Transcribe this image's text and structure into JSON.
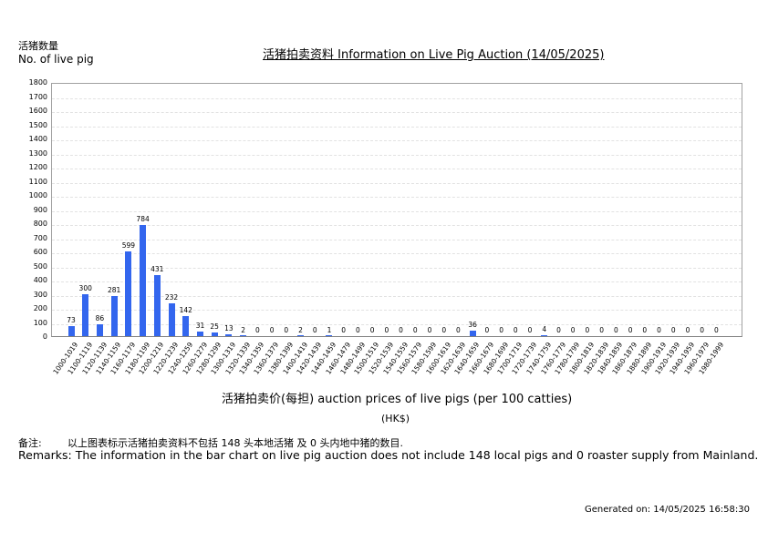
{
  "header": {
    "ylabel_cn": "活猪数量",
    "ylabel_en": "No. of live pig",
    "title": "活猪拍卖资料 Information on Live Pig Auction (14/05/2025)"
  },
  "footer": {
    "xlabel": "活猪拍卖价(每担) auction prices of live pigs (per 100 catties)",
    "xunit": "(HK$)",
    "remark_cn_label": "备注:",
    "remark_cn_text": "以上图表标示活猪拍卖资料不包括 148 头本地活猪 及 0 头内地中猪的数目.",
    "remark_en": "Remarks: The information in the bar chart on live pig auction does not include 148 local pigs and 0 roaster supply from Mainland.",
    "generated": "Generated on: 14/05/2025 16:58:30"
  },
  "colors": {
    "bar": "#3366ee",
    "grid": "#e2e2e2",
    "axis": "#808080"
  },
  "chart_data": {
    "type": "bar",
    "title": "活猪拍卖资料 Information on Live Pig Auction (14/05/2025)",
    "xlabel": "活猪拍卖价(每担) auction prices of live pigs (per 100 catties) (HK$)",
    "ylabel": "活猪数量 No. of live pig",
    "ylim": [
      0,
      1800
    ],
    "yticks": [
      0,
      100,
      200,
      300,
      400,
      500,
      600,
      700,
      800,
      900,
      1000,
      1100,
      1200,
      1300,
      1400,
      1500,
      1600,
      1700,
      1800
    ],
    "grid": true,
    "legend": null,
    "categories": [
      "1000-1019",
      "1100-1119",
      "1120-1139",
      "1140-1159",
      "1160-1179",
      "1180-1199",
      "1200-1219",
      "1220-1239",
      "1240-1259",
      "1260-1279",
      "1280-1299",
      "1300-1319",
      "1320-1339",
      "1340-1359",
      "1360-1379",
      "1380-1399",
      "1400-1419",
      "1420-1439",
      "1440-1459",
      "1460-1479",
      "1480-1499",
      "1500-1519",
      "1520-1539",
      "1540-1559",
      "1560-1579",
      "1580-1599",
      "1600-1619",
      "1620-1639",
      "1640-1659",
      "1660-1679",
      "1680-1699",
      "1700-1719",
      "1720-1739",
      "1740-1759",
      "1760-1779",
      "1780-1799",
      "1800-1819",
      "1820-1839",
      "1840-1859",
      "1860-1879",
      "1880-1899",
      "1900-1919",
      "1920-1939",
      "1940-1959",
      "1960-1979",
      "1980-1999"
    ],
    "values": [
      73,
      300,
      86,
      281,
      599,
      784,
      431,
      232,
      142,
      31,
      25,
      13,
      2,
      0,
      0,
      0,
      2,
      0,
      1,
      0,
      0,
      0,
      0,
      0,
      0,
      0,
      0,
      0,
      36,
      0,
      0,
      0,
      0,
      4,
      0,
      0,
      0,
      0,
      0,
      0,
      0,
      0,
      0,
      0,
      0,
      0
    ]
  }
}
